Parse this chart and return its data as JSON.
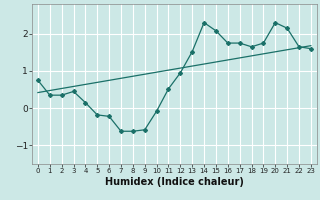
{
  "xlabel": "Humidex (Indice chaleur)",
  "background_color": "#cce8e6",
  "grid_color": "#ffffff",
  "line_color": "#1a7068",
  "xlim": [
    -0.5,
    23.5
  ],
  "ylim": [
    -1.5,
    2.8
  ],
  "yticks": [
    -1,
    0,
    1,
    2
  ],
  "xticks": [
    0,
    1,
    2,
    3,
    4,
    5,
    6,
    7,
    8,
    9,
    10,
    11,
    12,
    13,
    14,
    15,
    16,
    17,
    18,
    19,
    20,
    21,
    22,
    23
  ],
  "curve_x": [
    0,
    1,
    2,
    3,
    4,
    5,
    6,
    7,
    8,
    9,
    10,
    11,
    12,
    13,
    14,
    15,
    16,
    17,
    18,
    19,
    20,
    21,
    22,
    23
  ],
  "curve_y": [
    0.75,
    0.35,
    0.35,
    0.45,
    0.15,
    -0.18,
    -0.22,
    -0.62,
    -0.62,
    -0.58,
    -0.08,
    0.52,
    0.95,
    1.52,
    2.3,
    2.08,
    1.75,
    1.75,
    1.65,
    1.75,
    2.3,
    2.15,
    1.65,
    1.6
  ],
  "trend_x": [
    0,
    23
  ],
  "trend_y": [
    0.42,
    1.68
  ]
}
